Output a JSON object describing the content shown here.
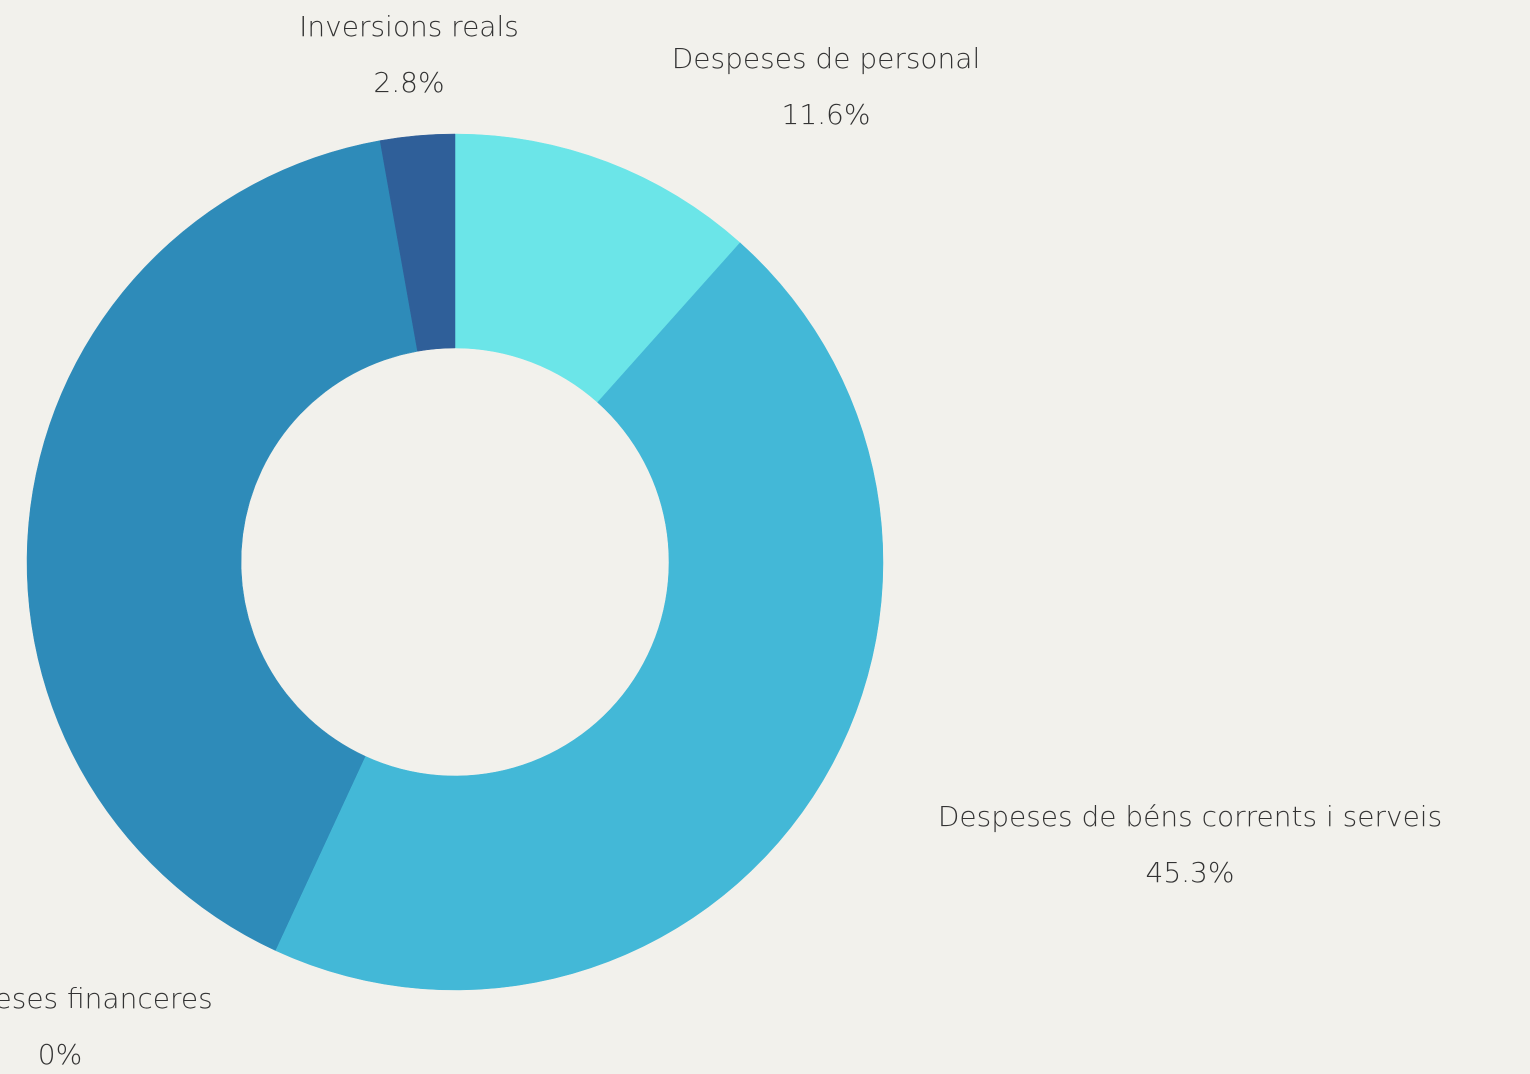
{
  "chart_data": {
    "type": "pie",
    "categories": [
      "Despeses de personal",
      "Despeses de béns corrents i serveis",
      "Despeses financeres",
      null,
      "Inversions reals"
    ],
    "values": [
      11.6,
      45.3,
      0,
      40.3,
      2.8
    ],
    "value_labels": [
      "11.6%",
      "45.3%",
      "0%",
      null,
      "2.8%"
    ],
    "colors": [
      "#6be5e8",
      "#43b8d7",
      "#2f6fa8",
      "#2e8bb9",
      "#2f5f99"
    ],
    "donut": true
  }
}
